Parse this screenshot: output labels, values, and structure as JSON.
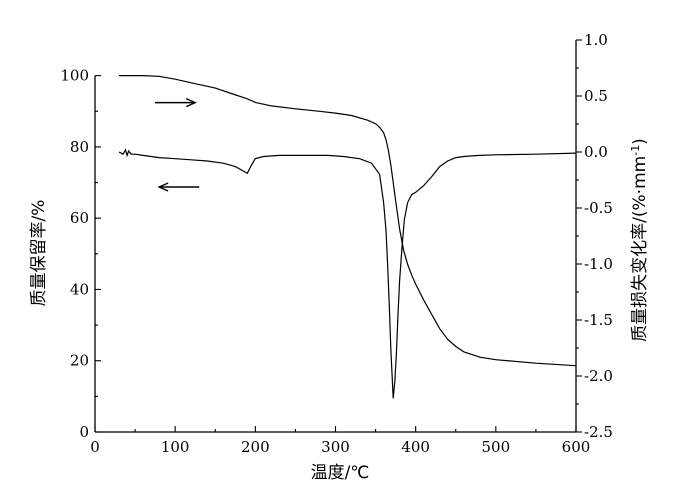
{
  "chart_data": {
    "type": "line",
    "xlabel": "温度/℃",
    "ylabel_left": "质量保留率/%",
    "ylabel_right": "质量损失变化率/(%·mm",
    "ylabel_right_sup": "-1",
    "ylabel_right_close": ")",
    "xlim": [
      0,
      600
    ],
    "ylim_left": [
      0,
      110
    ],
    "ylim_right": [
      -2.5,
      1.0
    ],
    "x_ticks": [
      "0",
      "100",
      "200",
      "300",
      "400",
      "500",
      "600"
    ],
    "y_left_ticks": [
      "0",
      "20",
      "40",
      "60",
      "80",
      "100"
    ],
    "y_right_ticks": [
      "-2.5",
      "-2.0",
      "-1.5",
      "-1.0",
      "-0.5",
      "0.0",
      "0.5",
      "1.0"
    ],
    "grid": false,
    "series": [
      {
        "axis": "left",
        "arrow": "right",
        "x": [
          30,
          60,
          80,
          100,
          120,
          150,
          170,
          190,
          200,
          220,
          250,
          280,
          300,
          320,
          340,
          350,
          355,
          360,
          363,
          366,
          369,
          372,
          375,
          380,
          385,
          390,
          395,
          400,
          410,
          420,
          430,
          440,
          450,
          460,
          480,
          500,
          550,
          600
        ],
        "y": [
          100,
          100,
          99.8,
          99,
          98,
          96.5,
          95,
          93.5,
          92.5,
          91.5,
          90.7,
          90,
          89.5,
          88.8,
          87.5,
          86.5,
          85.5,
          84,
          82,
          79,
          75,
          70,
          65,
          57,
          51,
          47,
          44,
          41.5,
          37,
          33,
          29,
          26,
          24,
          22.5,
          21,
          20.3,
          19.3,
          18.6
        ]
      },
      {
        "axis": "right",
        "arrow": "left",
        "x": [
          30,
          35,
          38,
          40,
          42,
          45,
          50,
          60,
          80,
          100,
          120,
          140,
          160,
          175,
          185,
          190,
          195,
          200,
          210,
          230,
          260,
          290,
          310,
          330,
          345,
          355,
          360,
          363,
          365,
          367,
          369,
          371,
          372,
          374,
          376,
          378,
          380,
          383,
          386,
          390,
          395,
          400,
          410,
          420,
          430,
          440,
          450,
          460,
          470,
          480,
          500,
          550,
          600
        ],
        "y": [
          0.0,
          -0.02,
          0.02,
          -0.03,
          0.01,
          -0.02,
          -0.02,
          -0.03,
          -0.05,
          -0.06,
          -0.07,
          -0.08,
          -0.1,
          -0.13,
          -0.17,
          -0.19,
          -0.12,
          -0.06,
          -0.04,
          -0.03,
          -0.03,
          -0.03,
          -0.04,
          -0.06,
          -0.1,
          -0.2,
          -0.45,
          -0.7,
          -1.0,
          -1.35,
          -1.75,
          -2.05,
          -2.2,
          -2.05,
          -1.8,
          -1.45,
          -1.15,
          -0.85,
          -0.6,
          -0.45,
          -0.38,
          -0.36,
          -0.3,
          -0.22,
          -0.13,
          -0.08,
          -0.05,
          -0.04,
          -0.035,
          -0.03,
          -0.025,
          -0.02,
          -0.01
        ]
      }
    ]
  }
}
